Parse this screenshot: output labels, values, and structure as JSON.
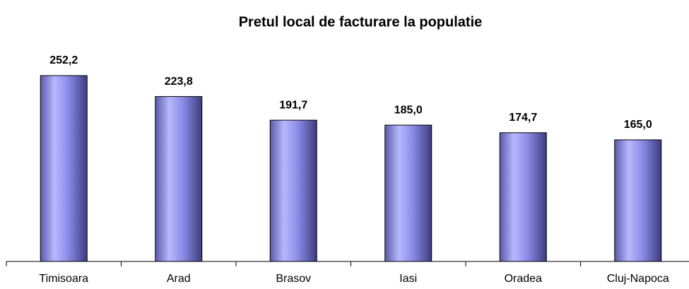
{
  "chart_data": {
    "type": "bar",
    "title": "Pretul local de facturare la populatie",
    "categories": [
      "Timisoara",
      "Arad",
      "Brasov",
      "Iasi",
      "Oradea",
      "Cluj-Napoca"
    ],
    "values": [
      252.2,
      223.8,
      191.7,
      185.0,
      174.7,
      165.0
    ],
    "value_labels": [
      "252,2",
      "223,8",
      "191,7",
      "185,0",
      "174,7",
      "165,0"
    ],
    "color": "#8080e0",
    "ylim": [
      0,
      280
    ]
  }
}
